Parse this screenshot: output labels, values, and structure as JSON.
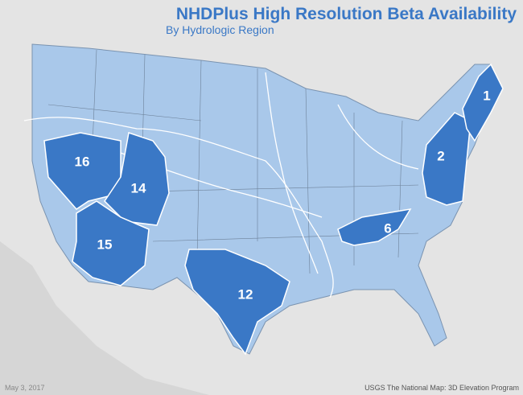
{
  "header": {
    "title": "NHDPlus High Resolution Beta Availability",
    "subtitle": "By Hydrologic Region"
  },
  "regions": [
    {
      "label": "1"
    },
    {
      "label": "2"
    },
    {
      "label": "6"
    },
    {
      "label": "12"
    },
    {
      "label": "14"
    },
    {
      "label": "15"
    },
    {
      "label": "16"
    }
  ],
  "footer": {
    "date": "May 3, 2017",
    "credit": "USGS The National Map: 3D Elevation Program"
  }
}
